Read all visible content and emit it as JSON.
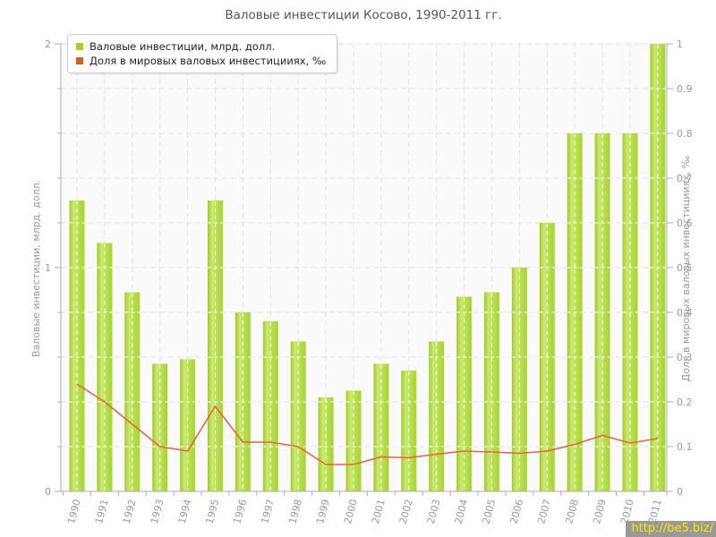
{
  "page": {
    "title": "Валовые инвестиции Косово, 1990-2011 гг."
  },
  "legend": {
    "items": [
      {
        "label": "Валовые инвестиции, млрд. долл.",
        "color": "#a8d021",
        "marker": "square"
      },
      {
        "label": "Доля в мировых валовых инвестицииях, ‰",
        "color": "#dd5b1d",
        "marker": "square"
      }
    ]
  },
  "watermark": {
    "text": "http://be5.biz/",
    "bg": "#999999",
    "color": "#ffe600"
  },
  "chart_data": {
    "type": "bar",
    "title": "Валовые инвестиции Косово, 1990-2011 гг.",
    "categories": [
      1990,
      1991,
      1992,
      1993,
      1994,
      1995,
      1996,
      1997,
      1998,
      1999,
      2000,
      2001,
      2002,
      2003,
      2004,
      2005,
      2006,
      2007,
      2008,
      2009,
      2010,
      2011
    ],
    "series": [
      {
        "name": "Валовые инвестиции, млрд. долл.",
        "type": "bar",
        "axis": "left",
        "color": "#b5dc3f",
        "values": [
          1.3,
          1.11,
          0.89,
          0.57,
          0.59,
          1.3,
          0.8,
          0.76,
          0.67,
          0.42,
          0.45,
          0.57,
          0.54,
          0.67,
          0.87,
          0.89,
          1.0,
          1.2,
          1.6,
          1.6,
          1.6,
          2.0
        ]
      },
      {
        "name": "Доля в мировых валовых инвестицииях, ‰",
        "type": "line",
        "axis": "right",
        "color": "#e2663e",
        "values": [
          0.24,
          0.2,
          0.15,
          0.1,
          0.09,
          0.19,
          0.11,
          0.11,
          0.1,
          0.06,
          0.06,
          0.077,
          0.075,
          0.083,
          0.09,
          0.088,
          0.085,
          0.09,
          0.105,
          0.125,
          0.108,
          0.118
        ]
      }
    ],
    "left_axis": {
      "label": "Валовые инвестиции, млрд. долл.",
      "min": 0,
      "max": 2,
      "ticks": [
        0,
        1,
        2
      ],
      "minor_step": 0.2
    },
    "right_axis": {
      "label": "Доля в мировых валовых инвестицииях, ‰",
      "min": 0,
      "max": 1,
      "ticks": [
        0,
        0.1,
        0.2,
        0.3,
        0.4,
        0.5,
        0.6,
        0.7,
        0.8,
        0.9,
        1
      ]
    },
    "grid": true,
    "legend_position": "top-left",
    "x_label_rotation": -75,
    "plot_background": "#fafafa",
    "gridline_color": "#e3e3e3"
  }
}
